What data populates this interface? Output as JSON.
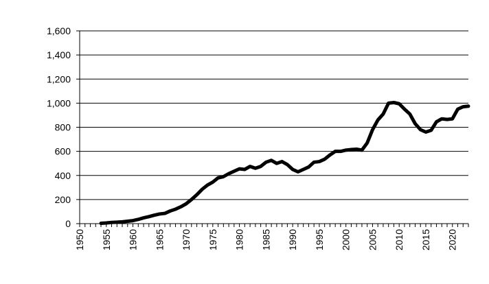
{
  "chart_data": {
    "type": "line",
    "title": "",
    "xlabel": "",
    "ylabel": "",
    "xlim": [
      1950,
      2023
    ],
    "ylim": [
      0,
      1600
    ],
    "yticks": [
      0,
      200,
      400,
      600,
      800,
      1000,
      1200,
      1400,
      1600
    ],
    "ytick_labels": [
      "0",
      "200",
      "400",
      "600",
      "800",
      "1,000",
      "1,200",
      "1,400",
      "1,600"
    ],
    "xticks": [
      1950,
      1955,
      1960,
      1965,
      1970,
      1975,
      1980,
      1985,
      1990,
      1995,
      2000,
      2005,
      2010,
      2015,
      2020
    ],
    "xtick_labels": [
      "1950",
      "1955",
      "1960",
      "1965",
      "1970",
      "1975",
      "1980",
      "1985",
      "1990",
      "1995",
      "2000",
      "2005",
      "2010",
      "2015",
      "2020"
    ],
    "grid": "horizontal",
    "legend": "none",
    "line_color": "#000000",
    "series": [
      {
        "x": [
          1954,
          1955,
          1956,
          1957,
          1958,
          1959,
          1960,
          1961,
          1962,
          1963,
          1964,
          1965,
          1966,
          1967,
          1968,
          1969,
          1970,
          1971,
          1972,
          1973,
          1974,
          1975,
          1976,
          1977,
          1978,
          1979,
          1980,
          1981,
          1982,
          1983,
          1984,
          1985,
          1986,
          1987,
          1988,
          1989,
          1990,
          1991,
          1992,
          1993,
          1994,
          1995,
          1996,
          1997,
          1998,
          1999,
          2000,
          2001,
          2002,
          2003,
          2004,
          2005,
          2006,
          2007,
          2008,
          2009,
          2010,
          2011,
          2012,
          2013,
          2014,
          2015,
          2016,
          2017,
          2018,
          2019,
          2020,
          2021,
          2022,
          2023
        ],
        "values": [
          3,
          6,
          10,
          12,
          15,
          20,
          25,
          35,
          48,
          58,
          70,
          80,
          85,
          105,
          120,
          140,
          165,
          200,
          240,
          285,
          320,
          345,
          380,
          390,
          415,
          435,
          455,
          450,
          475,
          460,
          475,
          510,
          525,
          500,
          515,
          490,
          450,
          430,
          450,
          470,
          510,
          515,
          535,
          570,
          600,
          600,
          610,
          615,
          618,
          610,
          670,
          780,
          860,
          910,
          1000,
          1005,
          995,
          950,
          910,
          830,
          780,
          760,
          775,
          845,
          870,
          865,
          870,
          950,
          970,
          975
        ]
      }
    ]
  }
}
